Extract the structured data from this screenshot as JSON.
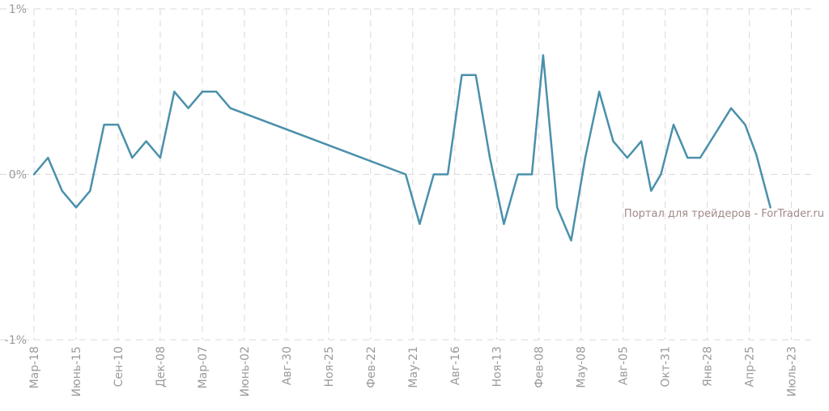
{
  "chart_data": {
    "type": "line",
    "ylim": [
      -1,
      1
    ],
    "y_ticks": [
      {
        "value": 1,
        "label": "1%"
      },
      {
        "value": 0,
        "label": "0%"
      },
      {
        "value": -1,
        "label": "-1%"
      }
    ],
    "x_ticks": [
      {
        "index": 0,
        "label": "Мар-18"
      },
      {
        "index": 3,
        "label": "Июнь-15"
      },
      {
        "index": 6,
        "label": "Сен-10"
      },
      {
        "index": 9,
        "label": "Дек-08"
      },
      {
        "index": 12,
        "label": "Мар-07"
      },
      {
        "index": 15,
        "label": "Июнь-02"
      },
      {
        "index": 18,
        "label": "Авг-30"
      },
      {
        "index": 21,
        "label": "Ноя-25"
      },
      {
        "index": 24,
        "label": "Фев-22"
      },
      {
        "index": 27,
        "label": "May-21"
      },
      {
        "index": 30,
        "label": "Авг-16"
      },
      {
        "index": 33,
        "label": "Ноя-13"
      },
      {
        "index": 36,
        "label": "Фев-08"
      },
      {
        "index": 39,
        "label": "May-08"
      },
      {
        "index": 42,
        "label": "Авг-05"
      },
      {
        "index": 45,
        "label": "Окт-31"
      },
      {
        "index": 48,
        "label": "Янв-28"
      },
      {
        "index": 51,
        "label": "Апр-25"
      },
      {
        "index": 54,
        "label": "Июль-23"
      }
    ],
    "x_count": 57,
    "grid": true,
    "series": [
      {
        "color": "#4a90ab",
        "points": [
          {
            "i": 0,
            "v": 0.0
          },
          {
            "i": 1,
            "v": 0.1
          },
          {
            "i": 2,
            "v": -0.1
          },
          {
            "i": 3,
            "v": -0.2
          },
          {
            "i": 4,
            "v": -0.1
          },
          {
            "i": 5,
            "v": 0.3
          },
          {
            "i": 6,
            "v": 0.3
          },
          {
            "i": 7,
            "v": 0.1
          },
          {
            "i": 8,
            "v": 0.2
          },
          {
            "i": 9,
            "v": 0.1
          },
          {
            "i": 10,
            "v": 0.5
          },
          {
            "i": 11,
            "v": 0.4
          },
          {
            "i": 12,
            "v": 0.5
          },
          {
            "i": 13,
            "v": 0.5
          },
          {
            "i": 14,
            "v": 0.4
          },
          {
            "i": 26.5,
            "v": 0.0
          },
          {
            "i": 27.5,
            "v": -0.3
          },
          {
            "i": 28.5,
            "v": 0.0
          },
          {
            "i": 29.5,
            "v": 0.0
          },
          {
            "i": 30.5,
            "v": 0.6
          },
          {
            "i": 31.5,
            "v": 0.6
          },
          {
            "i": 32.5,
            "v": 0.1
          },
          {
            "i": 33.5,
            "v": -0.3
          },
          {
            "i": 34.5,
            "v": 0.0
          },
          {
            "i": 35.5,
            "v": 0.0
          },
          {
            "i": 36.3,
            "v": 0.72
          },
          {
            "i": 37.3,
            "v": -0.2
          },
          {
            "i": 38.3,
            "v": -0.4
          },
          {
            "i": 39.3,
            "v": 0.1
          },
          {
            "i": 40.3,
            "v": 0.5
          },
          {
            "i": 41.3,
            "v": 0.2
          },
          {
            "i": 42.3,
            "v": 0.1
          },
          {
            "i": 43.3,
            "v": 0.2
          },
          {
            "i": 44.0,
            "v": -0.1
          },
          {
            "i": 44.7,
            "v": 0.0
          },
          {
            "i": 45.6,
            "v": 0.3
          },
          {
            "i": 46.6,
            "v": 0.1
          },
          {
            "i": 47.5,
            "v": 0.1
          },
          {
            "i": 48.6,
            "v": 0.25
          },
          {
            "i": 49.7,
            "v": 0.4
          },
          {
            "i": 50.7,
            "v": 0.3
          },
          {
            "i": 51.5,
            "v": 0.12
          },
          {
            "i": 52.5,
            "v": -0.2
          }
        ]
      }
    ]
  },
  "watermark": "Портал для трейдеров - ForTrader.ru"
}
